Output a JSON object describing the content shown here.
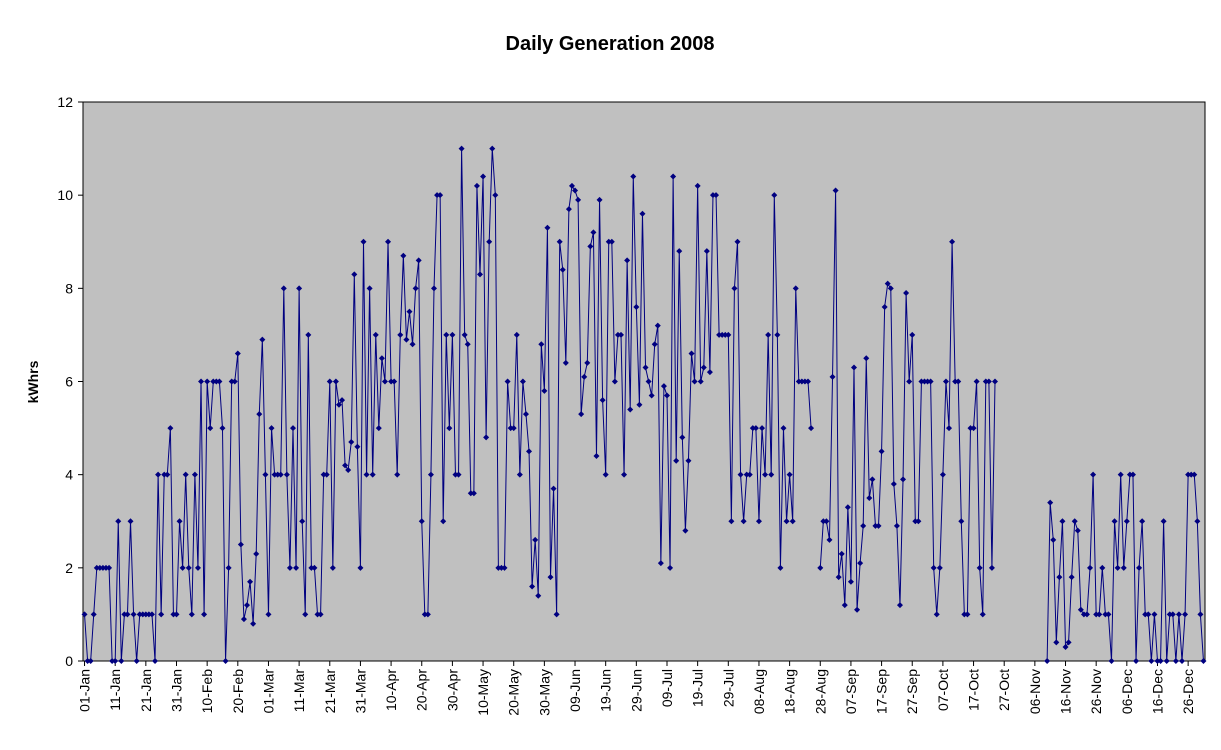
{
  "chart_data": {
    "type": "line",
    "title": "Daily Generation 2008",
    "y_label": "kWhrs",
    "color": "#000080",
    "plot_background": "#c0c0c0",
    "ylim": [
      0,
      12
    ],
    "yticks": [
      0,
      2,
      4,
      6,
      8,
      10,
      12
    ],
    "categories": [
      "01-Jan",
      null,
      null,
      null,
      null,
      null,
      null,
      null,
      null,
      null,
      "11-Jan",
      null,
      null,
      null,
      null,
      null,
      null,
      null,
      null,
      null,
      "21-Jan",
      null,
      null,
      null,
      null,
      null,
      null,
      null,
      null,
      null,
      "31-Jan",
      null,
      null,
      null,
      null,
      null,
      null,
      null,
      null,
      null,
      "10-Feb",
      null,
      null,
      null,
      null,
      null,
      null,
      null,
      null,
      null,
      "20-Feb",
      null,
      null,
      null,
      null,
      null,
      null,
      null,
      null,
      null,
      "01-Mar",
      null,
      null,
      null,
      null,
      null,
      null,
      null,
      null,
      null,
      "11-Mar",
      null,
      null,
      null,
      null,
      null,
      null,
      null,
      null,
      null,
      "21-Mar",
      null,
      null,
      null,
      null,
      null,
      null,
      null,
      null,
      null,
      "31-Mar",
      null,
      null,
      null,
      null,
      null,
      null,
      null,
      null,
      null,
      "10-Apr",
      null,
      null,
      null,
      null,
      null,
      null,
      null,
      null,
      null,
      "20-Apr",
      null,
      null,
      null,
      null,
      null,
      null,
      null,
      null,
      null,
      "30-Apr",
      null,
      null,
      null,
      null,
      null,
      null,
      null,
      null,
      null,
      "10-May",
      null,
      null,
      null,
      null,
      null,
      null,
      null,
      null,
      null,
      "20-May",
      null,
      null,
      null,
      null,
      null,
      null,
      null,
      null,
      null,
      "30-May",
      null,
      null,
      null,
      null,
      null,
      null,
      null,
      null,
      null,
      "09-Jun",
      null,
      null,
      null,
      null,
      null,
      null,
      null,
      null,
      null,
      "19-Jun",
      null,
      null,
      null,
      null,
      null,
      null,
      null,
      null,
      null,
      "29-Jun",
      null,
      null,
      null,
      null,
      null,
      null,
      null,
      null,
      null,
      "09-Jul",
      null,
      null,
      null,
      null,
      null,
      null,
      null,
      null,
      null,
      "19-Jul",
      null,
      null,
      null,
      null,
      null,
      null,
      null,
      null,
      null,
      "29-Jul",
      null,
      null,
      null,
      null,
      null,
      null,
      null,
      null,
      null,
      "08-Aug",
      null,
      null,
      null,
      null,
      null,
      null,
      null,
      null,
      null,
      "18-Aug",
      null,
      null,
      null,
      null,
      null,
      null,
      null,
      null,
      null,
      "28-Aug",
      null,
      null,
      null,
      null,
      null,
      null,
      null,
      null,
      null,
      "07-Sep",
      null,
      null,
      null,
      null,
      null,
      null,
      null,
      null,
      null,
      "17-Sep",
      null,
      null,
      null,
      null,
      null,
      null,
      null,
      null,
      null,
      "27-Sep",
      null,
      null,
      null,
      null,
      null,
      null,
      null,
      null,
      null,
      "07-Oct",
      null,
      null,
      null,
      null,
      null,
      null,
      null,
      null,
      null,
      "17-Oct",
      null,
      null,
      null,
      null,
      null,
      null,
      null,
      null,
      null,
      "27-Oct",
      null,
      null,
      null,
      null,
      null,
      null,
      null,
      null,
      null,
      "06-Nov",
      null,
      null,
      null,
      null,
      null,
      null,
      null,
      null,
      null,
      "16-Nov",
      null,
      null,
      null,
      null,
      null,
      null,
      null,
      null,
      null,
      "26-Nov",
      null,
      null,
      null,
      null,
      null,
      null,
      null,
      null,
      null,
      "06-Dec",
      null,
      null,
      null,
      null,
      null,
      null,
      null,
      null,
      null,
      "16-Dec",
      null,
      null,
      null,
      null,
      null,
      null,
      null,
      null,
      null,
      "26-Dec",
      null,
      null,
      null,
      null,
      null
    ],
    "values": [
      1,
      0,
      0,
      1,
      2,
      2,
      2,
      2,
      2,
      0,
      0,
      3,
      0,
      1,
      1,
      3,
      1,
      0,
      1,
      1,
      1,
      1,
      1,
      0,
      4,
      1,
      4,
      4,
      5,
      1,
      1,
      3,
      2,
      4,
      2,
      1,
      4,
      2,
      6,
      1,
      6,
      5,
      6,
      6,
      6,
      5,
      0,
      2,
      6,
      6,
      6.6,
      2.5,
      0.9,
      1.2,
      1.7,
      0.8,
      2.3,
      5.3,
      6.9,
      4,
      1,
      5,
      4,
      4,
      4,
      8,
      4,
      2,
      5,
      2,
      8,
      3,
      1,
      7,
      2,
      2,
      1,
      1,
      4,
      4,
      6,
      2,
      6,
      5.5,
      5.6,
      4.2,
      4.1,
      4.7,
      8.3,
      4.6,
      2,
      9,
      4,
      8,
      4,
      7,
      5,
      6.5,
      6,
      9,
      6,
      6,
      4,
      7,
      8.7,
      6.9,
      7.5,
      6.8,
      8,
      8.6,
      3,
      1,
      1,
      4,
      8,
      10,
      10,
      3,
      7,
      5,
      7,
      4,
      4,
      11,
      7,
      6.8,
      3.6,
      3.6,
      10.2,
      8.3,
      10.4,
      4.8,
      9,
      11,
      10,
      2,
      2,
      2,
      6,
      5,
      5,
      7,
      4,
      6,
      5.3,
      4.5,
      1.6,
      2.6,
      1.4,
      6.8,
      5.8,
      9.3,
      1.8,
      3.7,
      1,
      9,
      8.4,
      6.4,
      9.7,
      10.2,
      10.1,
      9.9,
      5.3,
      6.1,
      6.4,
      8.9,
      9.2,
      4.4,
      9.9,
      5.6,
      4,
      9,
      9,
      6,
      7,
      7,
      4,
      8.6,
      5.4,
      10.4,
      7.6,
      5.5,
      9.6,
      6.3,
      6,
      5.7,
      6.8,
      7.2,
      2.1,
      5.9,
      5.7,
      2,
      10.4,
      4.3,
      8.8,
      4.8,
      2.8,
      4.3,
      6.6,
      6,
      10.2,
      6,
      6.3,
      8.8,
      6.2,
      10,
      10,
      7,
      7,
      7,
      7,
      3,
      8,
      9,
      4,
      3,
      4,
      4,
      5,
      5,
      3,
      5,
      4,
      7,
      4,
      10,
      7,
      2,
      5,
      3,
      4,
      3,
      8,
      6,
      6,
      6,
      6,
      5,
      null,
      null,
      2,
      3,
      3,
      2.6,
      6.1,
      10.1,
      1.8,
      2.3,
      1.2,
      3.3,
      1.7,
      6.3,
      1.1,
      2.1,
      2.9,
      6.5,
      3.5,
      3.9,
      2.9,
      2.9,
      4.5,
      7.6,
      8.1,
      8,
      3.8,
      2.9,
      1.2,
      3.9,
      7.9,
      6,
      7,
      3,
      3,
      6,
      6,
      6,
      6,
      2,
      1,
      2,
      4,
      6,
      5,
      9,
      6,
      6,
      3,
      1,
      1,
      5,
      5,
      6,
      2,
      1,
      6,
      6,
      2,
      6,
      null,
      null,
      null,
      null,
      null,
      null,
      null,
      null,
      null,
      null,
      null,
      null,
      null,
      null,
      null,
      null,
      0,
      3.4,
      2.6,
      0.4,
      1.8,
      3,
      0.3,
      0.4,
      1.8,
      3,
      2.8,
      1.1,
      1,
      1,
      2,
      4,
      1,
      1,
      2,
      1,
      1,
      0,
      3,
      2,
      4,
      2,
      3,
      4,
      4,
      0,
      2,
      3,
      1,
      1,
      0,
      1,
      0,
      0,
      3,
      0,
      1,
      1,
      0,
      1,
      0,
      1,
      4,
      4,
      4,
      3,
      1,
      0
    ]
  }
}
